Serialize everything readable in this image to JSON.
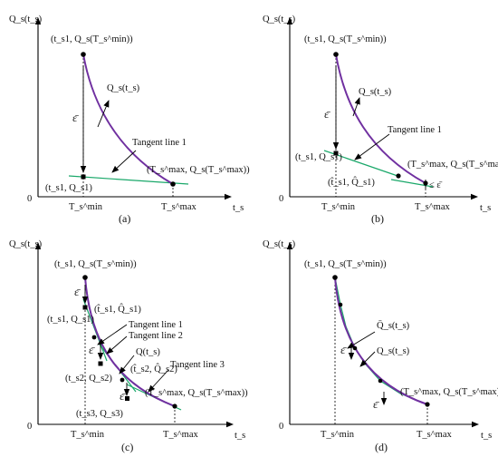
{
  "panels": [
    {
      "id": "a",
      "caption": "(a)",
      "ylabel": "Q_s(t_s)",
      "origin": "0",
      "xlabel": "t_s",
      "tick_min": "T_s^min",
      "tick_max": "T_s^max",
      "labels": {
        "top_point": "(t_s1, Q_s(T_s^min))",
        "curve": "Q_s(t_s)",
        "eps": "ε̄",
        "tangent1": "Tangent line 1",
        "end_point": "(T_s^max, Q_s(T_s^max))",
        "tan_point": "(t_s1, Q_s1)"
      }
    },
    {
      "id": "b",
      "caption": "(b)",
      "ylabel": "Q_s(t_s)",
      "origin": "0",
      "xlabel": "t_s",
      "tick_min": "T_s^min",
      "tick_max": "T_s^max",
      "labels": {
        "top_point": "(t_s1, Q_s(T_s^min))",
        "curve": "Q_s(t_s)",
        "eps": "ε̄",
        "tangent1": "Tangent line 1",
        "tan_point": "(t_s1, Q_s1)",
        "hat_point": "(t̂_s1, Q̂_s1)",
        "end_point": "(T_s^max, Q_s(T_s^max))",
        "leq_eps": "≤ ε̄"
      }
    },
    {
      "id": "c",
      "caption": "(c)",
      "ylabel": "Q_s(t_s)",
      "origin": "0",
      "xlabel": "t_s",
      "tick_min": "T_s^min",
      "tick_max": "T_s^max",
      "labels": {
        "top_point": "(t_s1, Q_s(T_s^min))",
        "eps_top": "ε̄",
        "hat1": "(t̂_s1, Q̂_s1)",
        "p1": "(t_s1, Q_s1)",
        "tangent1": "Tangent line 1",
        "tangent2": "Tangent line 2",
        "eps_mid": "ε̄",
        "curve": "Q(t_s)",
        "hat2": "(t̂_s2, Q̂_s2)",
        "p2": "(t_s2, Q_s2)",
        "tangent3": "Tangent line 3",
        "eps_low": "ε̄",
        "end_point": "(T_s^max, Q_s(T_s^max))",
        "p3": "(t_s3, Q_s3)"
      }
    },
    {
      "id": "d",
      "caption": "(d)",
      "ylabel": "Q_s(t_s)",
      "origin": "0",
      "xlabel": "t_s",
      "tick_min": "T_s^min",
      "tick_max": "T_s^max",
      "labels": {
        "top_point": "(t_s1, Q_s(T_s^min))",
        "approx": "Q̄_s(t_s)",
        "eps_mid": "ε̄",
        "curve": "Q_s(t_s)",
        "end_point": "(T_s^max, Q_s(T_s^max))",
        "eps_low": "ε̄"
      }
    }
  ]
}
